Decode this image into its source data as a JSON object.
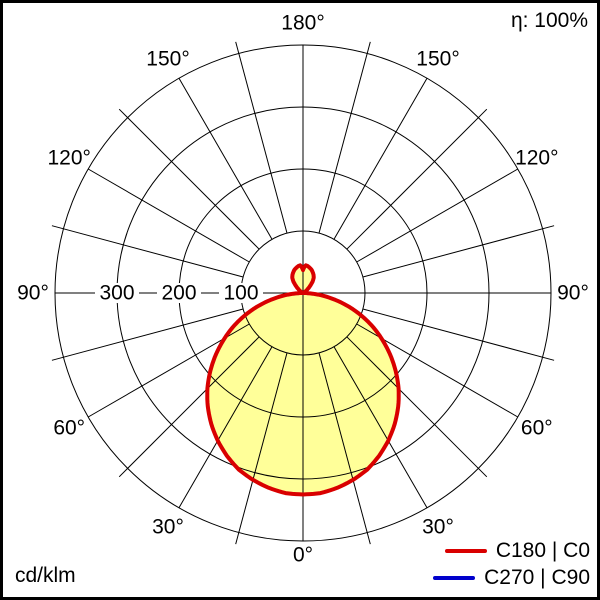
{
  "header": {
    "eta": "η: 100%"
  },
  "footer": {
    "unit": "cd/klm"
  },
  "legend": [
    {
      "label": "C180 | C0",
      "color": "#d90000"
    },
    {
      "label": "C270 | C90",
      "color": "#0000cc"
    }
  ],
  "chart_data": {
    "type": "polar",
    "subtype": "luminous-intensity-distribution",
    "unit": "cd/klm",
    "efficiency_text": "η: 100%",
    "angle_grid_step_deg": 15,
    "angle_labels": [
      {
        "deg": 0,
        "label": "0°"
      },
      {
        "deg": 30,
        "label": "30°"
      },
      {
        "deg": 60,
        "label": "60°"
      },
      {
        "deg": 90,
        "label": "90°"
      },
      {
        "deg": 120,
        "label": "120°"
      },
      {
        "deg": 150,
        "label": "150°"
      },
      {
        "deg": 180,
        "label": "180°"
      }
    ],
    "radial_ticks": [
      300,
      200,
      100
    ],
    "r_max": 400,
    "fill_color": "#ffff99",
    "series": [
      {
        "name": "C270 | C90",
        "color": "#0000cc",
        "stroke_width": 3,
        "symmetric": true,
        "points": [
          [
            0,
            325
          ],
          [
            5,
            324
          ],
          [
            10,
            319
          ],
          [
            15,
            312
          ],
          [
            20,
            303
          ],
          [
            25,
            290
          ],
          [
            30,
            275
          ],
          [
            35,
            258
          ],
          [
            40,
            239
          ],
          [
            45,
            218
          ],
          [
            50,
            195
          ],
          [
            55,
            171
          ],
          [
            60,
            146
          ],
          [
            65,
            121
          ],
          [
            70,
            95
          ],
          [
            75,
            69
          ],
          [
            80,
            43
          ],
          [
            85,
            20
          ],
          [
            88,
            7
          ],
          [
            90,
            2
          ],
          [
            95,
            0
          ],
          [
            110,
            0
          ],
          [
            115,
            1
          ],
          [
            120,
            3
          ],
          [
            125,
            6
          ],
          [
            130,
            10
          ],
          [
            135,
            16
          ],
          [
            140,
            24
          ],
          [
            145,
            30
          ],
          [
            150,
            34
          ],
          [
            155,
            37
          ],
          [
            160,
            40
          ],
          [
            165,
            42
          ],
          [
            170,
            44
          ],
          [
            174,
            45
          ],
          [
            177,
            42
          ],
          [
            180,
            37
          ]
        ]
      },
      {
        "name": "C180 | C0",
        "color": "#d90000",
        "stroke_width": 4,
        "symmetric": true,
        "points": [
          [
            0,
            325
          ],
          [
            5,
            324
          ],
          [
            10,
            319
          ],
          [
            15,
            312
          ],
          [
            20,
            303
          ],
          [
            25,
            290
          ],
          [
            30,
            275
          ],
          [
            35,
            258
          ],
          [
            40,
            239
          ],
          [
            45,
            218
          ],
          [
            50,
            195
          ],
          [
            55,
            171
          ],
          [
            60,
            146
          ],
          [
            65,
            121
          ],
          [
            70,
            95
          ],
          [
            75,
            69
          ],
          [
            80,
            43
          ],
          [
            85,
            20
          ],
          [
            88,
            7
          ],
          [
            90,
            2
          ],
          [
            95,
            0
          ],
          [
            110,
            0
          ],
          [
            115,
            1
          ],
          [
            120,
            3
          ],
          [
            125,
            6
          ],
          [
            130,
            10
          ],
          [
            135,
            16
          ],
          [
            140,
            24
          ],
          [
            145,
            30
          ],
          [
            150,
            34
          ],
          [
            155,
            37
          ],
          [
            160,
            40
          ],
          [
            165,
            42
          ],
          [
            170,
            44
          ],
          [
            174,
            45
          ],
          [
            177,
            42
          ],
          [
            180,
            37
          ]
        ]
      }
    ]
  }
}
